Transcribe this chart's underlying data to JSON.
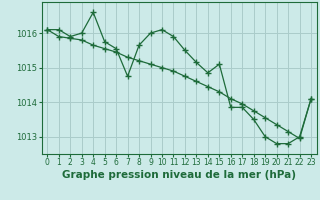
{
  "title": "Graphe pression niveau de la mer (hPa)",
  "background_color": "#cceae8",
  "grid_color": "#aaccca",
  "line_color": "#1e6b3a",
  "marker_color": "#1e6b3a",
  "x_values": [
    0,
    1,
    2,
    3,
    4,
    5,
    6,
    7,
    8,
    9,
    10,
    11,
    12,
    13,
    14,
    15,
    16,
    17,
    18,
    19,
    20,
    21,
    22,
    23
  ],
  "y1_values": [
    1016.1,
    1016.1,
    1015.9,
    1016.0,
    1016.6,
    1015.75,
    1015.55,
    1014.75,
    1015.65,
    1016.0,
    1016.1,
    1015.9,
    1015.5,
    1015.15,
    1014.85,
    1015.1,
    1013.85,
    1013.85,
    1013.5,
    1013.0,
    1012.8,
    1012.8,
    1013.0,
    1014.1
  ],
  "y2_values": [
    1016.1,
    1015.9,
    1015.85,
    1015.8,
    1015.65,
    1015.55,
    1015.45,
    1015.3,
    1015.2,
    1015.1,
    1015.0,
    1014.9,
    1014.75,
    1014.6,
    1014.45,
    1014.3,
    1014.1,
    1013.95,
    1013.75,
    1013.55,
    1013.35,
    1013.15,
    1012.95,
    1014.1
  ],
  "ylim": [
    1012.5,
    1016.9
  ],
  "yticks": [
    1013,
    1014,
    1015,
    1016
  ],
  "xlim": [
    -0.5,
    23.5
  ],
  "tick_fontsize": 5.5,
  "title_fontsize": 7.5
}
